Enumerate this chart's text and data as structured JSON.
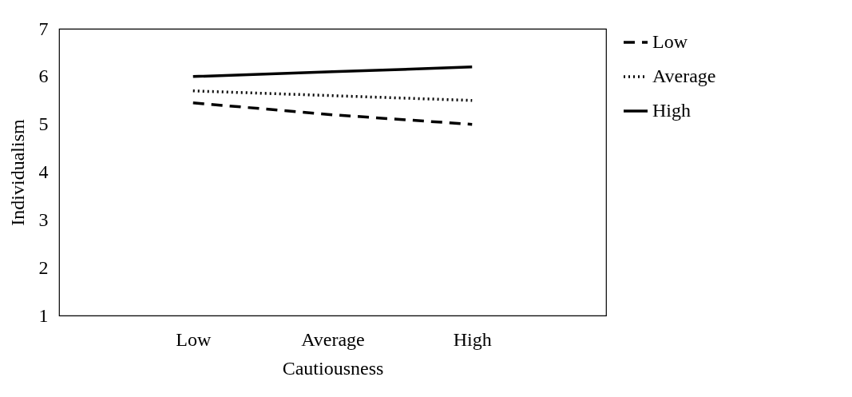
{
  "chart_data": {
    "type": "line",
    "xlabel": "Cautiousness",
    "ylabel": "Individualism",
    "categories": [
      "Low",
      "Average",
      "High"
    ],
    "series": [
      {
        "name": "Low",
        "color": "#000000",
        "line_style": "dashed",
        "values": [
          5.45,
          5.2,
          5.0
        ]
      },
      {
        "name": "Average",
        "color": "#000000",
        "line_style": "dotted",
        "values": [
          5.7,
          5.6,
          5.5
        ]
      },
      {
        "name": "High",
        "color": "#000000",
        "line_style": "solid",
        "values": [
          6.0,
          6.1,
          6.2
        ]
      }
    ],
    "ylim": [
      1,
      7
    ],
    "yticks": [
      1,
      2,
      3,
      4,
      5,
      6,
      7
    ],
    "legend": "right"
  }
}
